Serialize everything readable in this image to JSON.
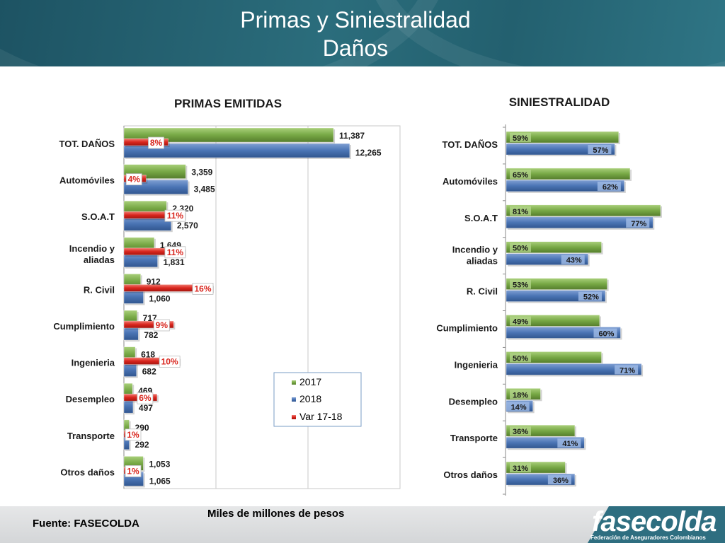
{
  "header": {
    "title_line1": "Primas y Siniestralidad",
    "title_line2": "Daños"
  },
  "chart_data": [
    {
      "type": "bar",
      "orientation": "horizontal",
      "title": "PRIMAS EMITIDAS",
      "categories": [
        "TOT. DAÑOS",
        "Automóviles",
        "S.O.A.T",
        "Incendio y aliadas",
        "R. Civil",
        "Cumplimiento",
        "Ingenieria",
        "Desempleo",
        "Transporte",
        "Otros daños"
      ],
      "series": [
        {
          "name": "2017",
          "color": "#77a845",
          "values": [
            11387,
            3359,
            2320,
            1649,
            912,
            717,
            618,
            469,
            290,
            1053
          ],
          "labels": [
            "11,387",
            "3,359",
            "2,320",
            "1,649",
            "912",
            "717",
            "618",
            "469",
            "290",
            "1,053"
          ]
        },
        {
          "name": "2018",
          "color": "#4a74b4",
          "values": [
            12265,
            3485,
            2570,
            1831,
            1060,
            782,
            682,
            497,
            292,
            1065
          ],
          "labels": [
            "12,265",
            "3,485",
            "2,570",
            "1,831",
            "1,060",
            "782",
            "682",
            "497",
            "292",
            "1,065"
          ]
        },
        {
          "name": "Var 17-18",
          "color": "#d9251d",
          "values": [
            8,
            4,
            11,
            11,
            16,
            9,
            10,
            6,
            1,
            1
          ],
          "labels": [
            "8%",
            "4%",
            "11%",
            "11%",
            "16%",
            "9%",
            "10%",
            "6%",
            "1%",
            "1%"
          ]
        }
      ],
      "legend": "bottom-right",
      "grid": true,
      "xlim": [
        0,
        15000
      ]
    },
    {
      "type": "bar",
      "orientation": "horizontal",
      "title": "SINIESTRALIDAD",
      "categories": [
        "TOT. DAÑOS",
        "Automóviles",
        "S.O.A.T",
        "Incendio y aliadas",
        "R. Civil",
        "Cumplimiento",
        "Ingenieria",
        "Desempleo",
        "Transporte",
        "Otros daños"
      ],
      "series": [
        {
          "name": "2017",
          "color": "#77a845",
          "values": [
            59,
            65,
            81,
            50,
            53,
            49,
            50,
            18,
            36,
            31
          ],
          "labels": [
            "59%",
            "65%",
            "81%",
            "50%",
            "53%",
            "49%",
            "50%",
            "18%",
            "36%",
            "31%"
          ]
        },
        {
          "name": "2018",
          "color": "#4a74b4",
          "values": [
            57,
            62,
            77,
            43,
            52,
            60,
            71,
            14,
            41,
            36
          ],
          "labels": [
            "57%",
            "62%",
            "77%",
            "43%",
            "52%",
            "60%",
            "71%",
            "14%",
            "41%",
            "36%"
          ]
        }
      ],
      "grid": true,
      "xlim": [
        0,
        82
      ]
    }
  ],
  "footer": {
    "source": "Fuente: FASECOLDA",
    "units": "Miles de millones de pesos",
    "logo_text": "fasecolda",
    "logo_subtitle": "Federación de Aseguradores Colombianos"
  }
}
